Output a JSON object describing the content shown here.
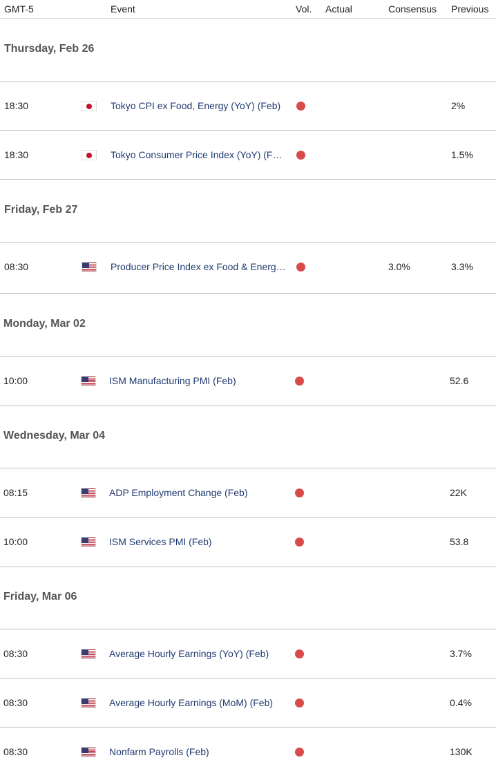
{
  "header": {
    "tz": "GMT-5",
    "event": "Event",
    "vol": "Vol.",
    "actual": "Actual",
    "consensus": "Consensus",
    "previous": "Previous"
  },
  "days": [
    {
      "label": "Thursday, Feb 26"
    },
    {
      "label": "Friday, Feb 27"
    },
    {
      "label": "Monday, Mar 02"
    },
    {
      "label": "Wednesday, Mar 04"
    },
    {
      "label": "Friday, Mar 06"
    }
  ],
  "rows": [
    {
      "time": "18:30",
      "country": "japan",
      "event": "Tokyo CPI ex Food, Energy (YoY) (Feb)",
      "actual": "",
      "consensus": "",
      "previous": "2%"
    },
    {
      "time": "18:30",
      "country": "japan",
      "event": "Tokyo Consumer Price Index (YoY) (F…",
      "actual": "",
      "consensus": "",
      "previous": "1.5%"
    },
    {
      "time": "08:30",
      "country": "usa",
      "event": "Producer Price Index ex Food & Energ…",
      "actual": "",
      "consensus": "3.0%",
      "previous": "3.3%"
    },
    {
      "time": "10:00",
      "country": "usa",
      "event": "ISM Manufacturing PMI (Feb)",
      "actual": "",
      "consensus": "",
      "previous": "52.6"
    },
    {
      "time": "08:15",
      "country": "usa",
      "event": "ADP Employment Change (Feb)",
      "actual": "",
      "consensus": "",
      "previous": "22K"
    },
    {
      "time": "10:00",
      "country": "usa",
      "event": "ISM Services PMI (Feb)",
      "actual": "",
      "consensus": "",
      "previous": "53.8"
    },
    {
      "time": "08:30",
      "country": "usa",
      "event": "Average Hourly Earnings (YoY) (Feb)",
      "actual": "",
      "consensus": "",
      "previous": "3.7%"
    },
    {
      "time": "08:30",
      "country": "usa",
      "event": "Average Hourly Earnings (MoM) (Feb)",
      "actual": "",
      "consensus": "",
      "previous": "0.4%"
    },
    {
      "time": "08:30",
      "country": "usa",
      "event": "Nonfarm Payrolls (Feb)",
      "actual": "",
      "consensus": "",
      "previous": "130K"
    }
  ],
  "volatility_color": "#d94b4b",
  "event_color": "#1f3a70"
}
